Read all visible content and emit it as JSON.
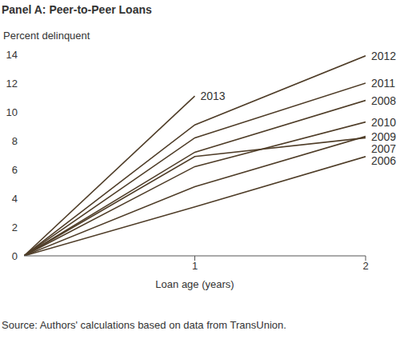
{
  "chart_data": {
    "type": "line",
    "title": "Panel A: Peer-to-Peer Loans",
    "y_label": "Percent delinquent",
    "x_label": "Loan age (years)",
    "source": "Source: Authors' calculations based on data from TransUnion.",
    "x": [
      0,
      1,
      2
    ],
    "xlim": [
      0,
      2
    ],
    "xticks": [
      1,
      2
    ],
    "ylim": [
      0,
      14
    ],
    "yticks": [
      0,
      2,
      4,
      6,
      8,
      10,
      12,
      14
    ],
    "grid": false,
    "series": [
      {
        "name": "2013",
        "color": "#4f3d28",
        "values": [
          0,
          11.1,
          null
        ]
      },
      {
        "name": "2012",
        "color": "#4f3d28",
        "values": [
          0,
          9.1,
          13.9
        ]
      },
      {
        "name": "2011",
        "color": "#4f3d28",
        "values": [
          0,
          8.2,
          12.0
        ]
      },
      {
        "name": "2008",
        "color": "#4f3d28",
        "values": [
          0,
          7.2,
          10.8
        ]
      },
      {
        "name": "2010",
        "color": "#4f3d28",
        "values": [
          0,
          6.2,
          9.3
        ]
      },
      {
        "name": "2009",
        "color": "#4f3d28",
        "values": [
          0,
          4.8,
          8.3
        ]
      },
      {
        "name": "2007",
        "color": "#4f3d28",
        "values": [
          0,
          6.9,
          8.2
        ]
      },
      {
        "name": "2006",
        "color": "#4f3d28",
        "values": [
          0,
          3.4,
          6.9
        ]
      }
    ]
  }
}
